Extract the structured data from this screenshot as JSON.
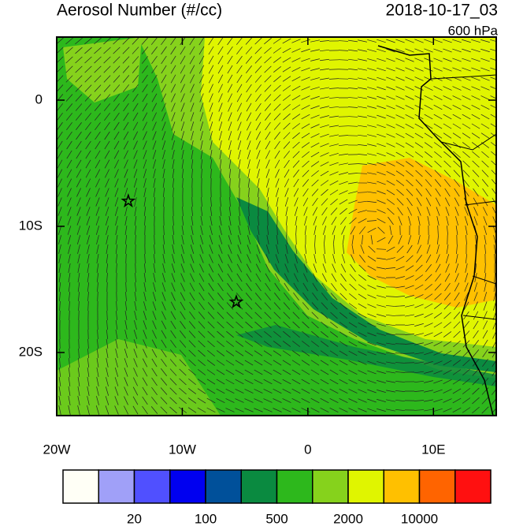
{
  "map": {
    "title": "Aerosol Number (#/cc)",
    "time": "2018-10-17_03",
    "level": "600 hPa",
    "xlim": [
      -20,
      15
    ],
    "ylim": [
      -25,
      5
    ],
    "x_ticks": [
      {
        "value": -20,
        "label": "20W"
      },
      {
        "value": -10,
        "label": "10W"
      },
      {
        "value": 0,
        "label": "0"
      },
      {
        "value": 10,
        "label": "10E"
      }
    ],
    "y_ticks": [
      {
        "value": 0,
        "label": "0"
      },
      {
        "value": -10,
        "label": "10S"
      },
      {
        "value": -20,
        "label": "20S"
      }
    ],
    "stars": [
      {
        "lon": -14.3,
        "lat": -8
      },
      {
        "lon": -5.7,
        "lat": -16
      }
    ],
    "colorbar": {
      "colors": [
        "#fffff6",
        "#a0a0f8",
        "#5050ff",
        "#0000f0",
        "#00509a",
        "#0a8a40",
        "#2db81c",
        "#86d21c",
        "#e0f500",
        "#ffc000",
        "#ff6400",
        "#ff1010"
      ],
      "labels": [
        "20",
        "100",
        "500",
        "2000",
        "10000"
      ]
    }
  }
}
